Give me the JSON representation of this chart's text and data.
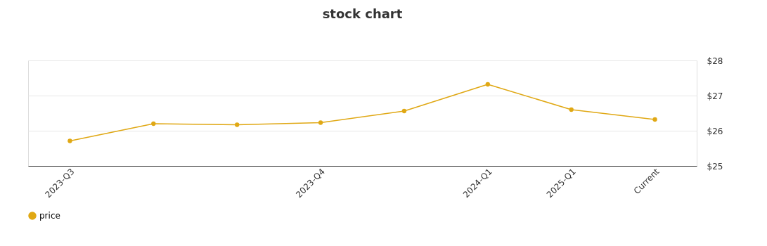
{
  "chart_data": {
    "type": "line",
    "title": "stock chart",
    "categories": [
      "2023-Q3",
      null,
      null,
      "2023-Q4",
      null,
      "2024-Q1",
      "2025-Q1",
      "Current"
    ],
    "series": [
      {
        "name": "price",
        "color": "#e0a814",
        "values": [
          25.71,
          26.2,
          26.17,
          26.23,
          26.56,
          27.32,
          26.6,
          26.32
        ]
      }
    ],
    "ylim": [
      25,
      28
    ],
    "yticks": [
      {
        "value": 25,
        "label": "$25"
      },
      {
        "value": 26,
        "label": "$26"
      },
      {
        "value": 27,
        "label": "$27"
      },
      {
        "value": 28,
        "label": "$28"
      }
    ],
    "grid": "y",
    "legend": "bottom",
    "marker": "circle",
    "line_style": "solid"
  }
}
